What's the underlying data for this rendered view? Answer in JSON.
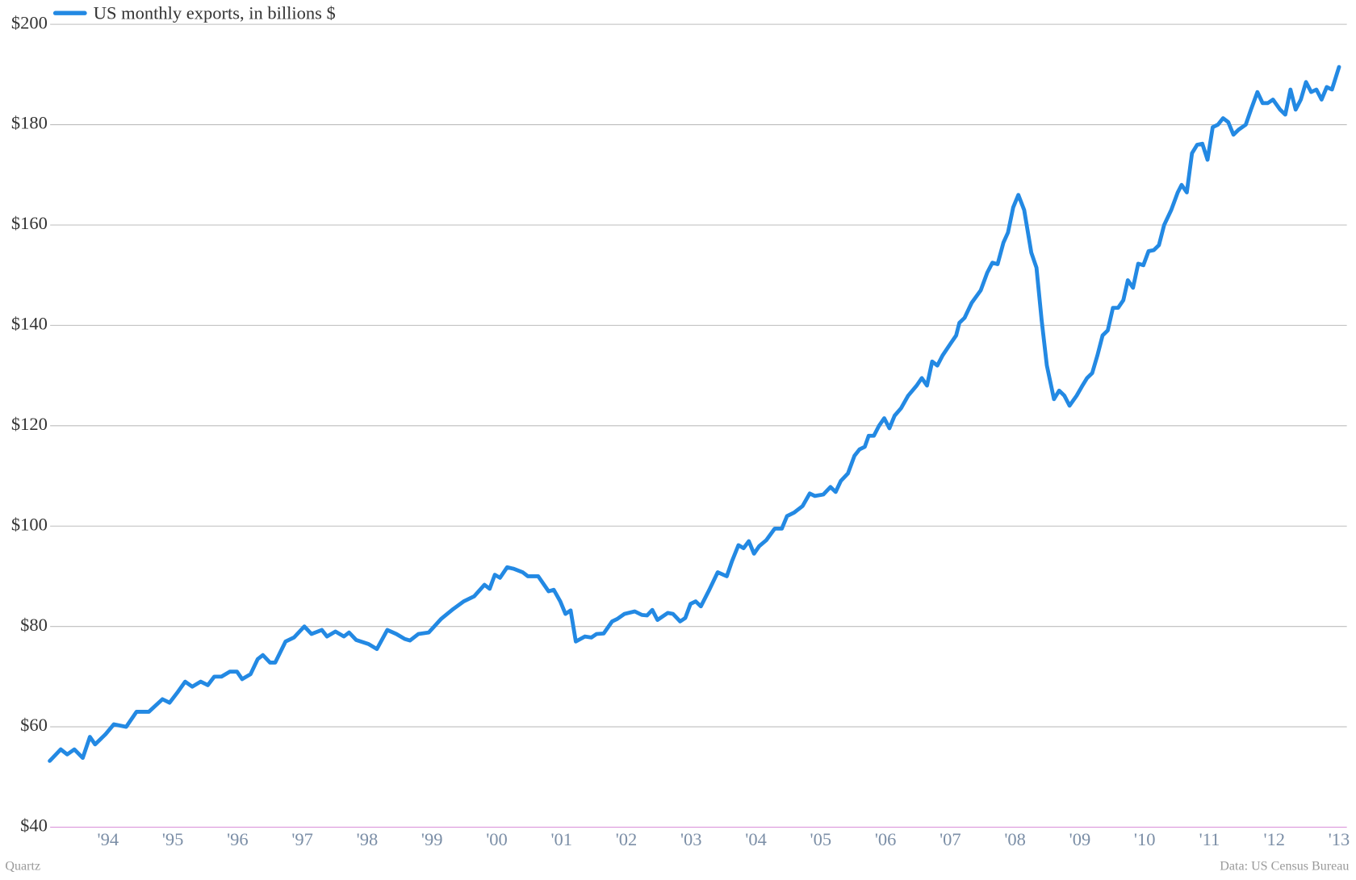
{
  "chart_data": {
    "type": "line",
    "series": [
      {
        "name": "US monthly exports, in billions $",
        "color": "#2389e3",
        "x": [
          1993.1,
          1993.27,
          1993.37,
          1993.48,
          1993.61,
          1993.72,
          1993.8,
          1993.96,
          1994.09,
          1994.28,
          1994.44,
          1994.63,
          1994.84,
          1994.95,
          1995.08,
          1995.19,
          1995.3,
          1995.43,
          1995.54,
          1995.64,
          1995.75,
          1995.88,
          1995.99,
          1996.07,
          1996.2,
          1996.31,
          1996.39,
          1996.5,
          1996.58,
          1996.74,
          1996.87,
          1997.03,
          1997.14,
          1997.3,
          1997.38,
          1997.51,
          1997.64,
          1997.72,
          1997.83,
          1998.02,
          1998.15,
          1998.31,
          1998.45,
          1998.58,
          1998.66,
          1998.79,
          1998.95,
          1999.14,
          1999.33,
          1999.49,
          1999.65,
          1999.81,
          1999.89,
          1999.97,
          2000.05,
          2000.16,
          2000.26,
          2000.4,
          2000.48,
          2000.64,
          2000.8,
          2000.88,
          2000.98,
          2001.06,
          2001.14,
          2001.22,
          2001.36,
          2001.46,
          2001.54,
          2001.65,
          2001.78,
          2001.86,
          2001.97,
          2002.13,
          2002.24,
          2002.32,
          2002.4,
          2002.48,
          2002.64,
          2002.72,
          2002.83,
          2002.91,
          2002.99,
          2003.07,
          2003.15,
          2003.28,
          2003.41,
          2003.55,
          2003.63,
          2003.73,
          2003.81,
          2003.89,
          2003.97,
          2004.05,
          2004.16,
          2004.29,
          2004.4,
          2004.48,
          2004.59,
          2004.72,
          2004.83,
          2004.91,
          2005.04,
          2005.15,
          2005.23,
          2005.31,
          2005.42,
          2005.52,
          2005.6,
          2005.68,
          2005.74,
          2005.82,
          2005.9,
          2005.98,
          2006.06,
          2006.14,
          2006.24,
          2006.35,
          2006.48,
          2006.56,
          2006.64,
          2006.72,
          2006.8,
          2006.88,
          2007.01,
          2007.09,
          2007.14,
          2007.22,
          2007.33,
          2007.47,
          2007.57,
          2007.65,
          2007.73,
          2007.82,
          2007.89,
          2007.97,
          2008.05,
          2008.14,
          2008.25,
          2008.33,
          2008.41,
          2008.49,
          2008.6,
          2008.68,
          2008.76,
          2008.84,
          2008.95,
          2009.03,
          2009.11,
          2009.19,
          2009.27,
          2009.35,
          2009.43,
          2009.51,
          2009.59,
          2009.67,
          2009.74,
          2009.82,
          2009.9,
          2009.98,
          2010.06,
          2010.14,
          2010.22,
          2010.3,
          2010.41,
          2010.51,
          2010.57,
          2010.65,
          2010.73,
          2010.81,
          2010.89,
          2010.97,
          2011.05,
          2011.13,
          2011.21,
          2011.29,
          2011.37,
          2011.45,
          2011.56,
          2011.64,
          2011.74,
          2011.82,
          2011.9,
          2011.98,
          2012.09,
          2012.17,
          2012.25,
          2012.33,
          2012.41,
          2012.49,
          2012.57,
          2012.65,
          2012.73,
          2012.81,
          2012.89,
          2013.0
        ],
        "values": [
          53.2,
          55.5,
          54.5,
          55.5,
          53.8,
          58,
          56.5,
          58.5,
          60.5,
          60,
          63,
          63,
          65.5,
          64.8,
          67,
          69,
          68,
          69,
          68.3,
          70,
          70,
          71,
          71,
          69.5,
          70.5,
          73.5,
          74.3,
          72.8,
          72.8,
          77,
          77.8,
          80,
          78.5,
          79.3,
          78,
          79,
          78,
          78.8,
          77.3,
          76.5,
          75.5,
          79.3,
          78.5,
          77.5,
          77.2,
          78.5,
          78.8,
          81.5,
          83.5,
          85,
          86,
          88.3,
          87.5,
          90.3,
          89.7,
          91.8,
          91.5,
          90.8,
          90,
          90,
          87,
          87.3,
          85,
          82.5,
          83.2,
          77,
          78,
          77.8,
          78.5,
          78.6,
          81,
          81.5,
          82.5,
          83,
          82.3,
          82.2,
          83.3,
          81.3,
          82.7,
          82.5,
          81,
          81.7,
          84.5,
          85,
          84,
          87.3,
          90.8,
          90,
          93,
          96.2,
          95.6,
          97,
          94.5,
          96,
          97.2,
          99.5,
          99.5,
          102,
          102.7,
          104,
          106.5,
          106,
          106.3,
          107.8,
          106.8,
          109,
          110.5,
          114,
          115.3,
          115.8,
          118,
          118,
          120,
          121.5,
          119.5,
          122,
          123.5,
          126,
          128,
          129.5,
          128,
          132.8,
          132,
          134,
          136.5,
          138,
          140.5,
          141.5,
          144.5,
          147,
          150.5,
          152.5,
          152.2,
          156.5,
          158.5,
          163.5,
          166,
          163,
          154.5,
          151.5,
          141,
          132,
          125.3,
          127,
          126,
          124,
          126,
          127.8,
          129.5,
          130.5,
          134,
          138,
          139,
          143.5,
          143.5,
          145,
          149,
          147.5,
          152.3,
          152,
          154.8,
          155,
          156,
          160,
          163,
          166.5,
          168,
          166.5,
          174.3,
          176,
          176.2,
          173,
          179.5,
          180,
          181.3,
          180.5,
          178,
          179,
          180,
          183,
          186.5,
          184.3,
          184.3,
          185,
          183,
          182,
          187,
          183,
          185,
          188.5,
          186.5,
          187,
          185,
          187.5,
          187,
          191.5
        ]
      }
    ],
    "xlim": [
      1993,
      2013.12
    ],
    "xticks": [
      {
        "value": 1994,
        "label": "'94"
      },
      {
        "value": 1995,
        "label": "'95"
      },
      {
        "value": 1996,
        "label": "'96"
      },
      {
        "value": 1997,
        "label": "'97"
      },
      {
        "value": 1998,
        "label": "'98"
      },
      {
        "value": 1999,
        "label": "'99"
      },
      {
        "value": 2000,
        "label": "'00"
      },
      {
        "value": 2001,
        "label": "'01"
      },
      {
        "value": 2002,
        "label": "'02"
      },
      {
        "value": 2003,
        "label": "'03"
      },
      {
        "value": 2004,
        "label": "'04"
      },
      {
        "value": 2005,
        "label": "'05"
      },
      {
        "value": 2006,
        "label": "'06"
      },
      {
        "value": 2007,
        "label": "'07"
      },
      {
        "value": 2008,
        "label": "'08"
      },
      {
        "value": 2009,
        "label": "'09"
      },
      {
        "value": 2010,
        "label": "'10"
      },
      {
        "value": 2011,
        "label": "'11"
      },
      {
        "value": 2012,
        "label": "'12"
      },
      {
        "value": 2013,
        "label": "'13"
      }
    ],
    "ylim": [
      40,
      200
    ],
    "yticks": [
      {
        "value": 40,
        "label": "$40"
      },
      {
        "value": 60,
        "label": "$60"
      },
      {
        "value": 80,
        "label": "$80"
      },
      {
        "value": 100,
        "label": "$100"
      },
      {
        "value": 120,
        "label": "$120"
      },
      {
        "value": 140,
        "label": "$140"
      },
      {
        "value": 160,
        "label": "$160"
      },
      {
        "value": 180,
        "label": "$180"
      },
      {
        "value": 200,
        "label": "$200"
      }
    ],
    "grid": true,
    "legend": "top-left",
    "credit": "Quartz",
    "source": "Data: US Census Bureau"
  }
}
